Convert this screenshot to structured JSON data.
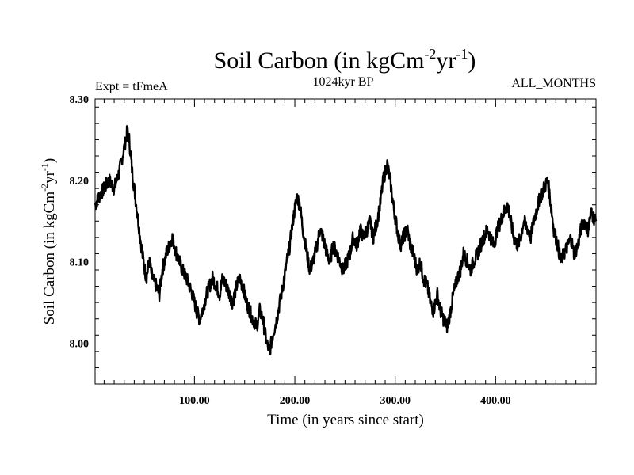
{
  "chart_data": {
    "type": "line",
    "title_main": "Soil Carbon (in kgCm",
    "title_sup1": "-2",
    "title_mid": "yr",
    "title_sup2": "-1",
    "title_end": ")",
    "left_note": "Expt = tFmeA",
    "center_note": "1024kyr BP",
    "right_note": "ALL_MONTHS",
    "xlabel": "Time (in years since start)",
    "ylabel_main": "Soil Carbon (in kgCm",
    "ylabel_sup1": "-2",
    "ylabel_mid": "yr",
    "ylabel_sup2": "-1",
    "ylabel_end": ")",
    "xlim": [
      1,
      500
    ],
    "ylim": [
      7.95,
      8.3
    ],
    "x_ticks": [
      100,
      200,
      300,
      400
    ],
    "x_tick_labels": [
      "100.00",
      "200.00",
      "300.00",
      "400.00"
    ],
    "y_ticks": [
      8.0,
      8.1,
      8.2,
      8.3
    ],
    "y_tick_labels": [
      "8.00",
      "8.10",
      "8.20",
      "8.30"
    ],
    "line_color": "#000000",
    "series": [
      {
        "x": [
          1,
          5,
          10,
          15,
          20,
          25,
          30,
          33,
          35,
          38,
          42,
          45,
          48,
          52,
          55,
          58,
          62,
          65,
          68,
          72,
          75,
          78,
          82,
          85,
          88,
          92,
          95,
          98,
          102,
          105,
          108,
          112,
          115,
          118,
          122,
          125,
          128,
          132,
          135,
          138,
          142,
          145,
          148,
          152,
          155,
          158,
          162,
          165,
          168,
          172,
          175,
          178,
          182,
          185,
          188,
          192,
          195,
          198,
          202,
          205,
          208,
          212,
          215,
          218,
          222,
          225,
          228,
          232,
          235,
          238,
          242,
          245,
          248,
          252,
          255,
          258,
          262,
          265,
          268,
          272,
          275,
          278,
          282,
          285,
          288,
          292,
          295,
          298,
          302,
          305,
          308,
          312,
          315,
          318,
          322,
          325,
          328,
          332,
          335,
          338,
          342,
          345,
          348,
          352,
          355,
          358,
          362,
          365,
          368,
          372,
          375,
          378,
          382,
          385,
          388,
          392,
          395,
          398,
          402,
          405,
          408,
          412,
          415,
          418,
          422,
          425,
          428,
          432,
          435,
          438,
          442,
          445,
          448,
          452,
          455,
          458,
          462,
          465,
          468,
          472,
          475,
          478,
          482,
          485,
          488,
          492,
          495,
          500
        ],
        "y": [
          8.17,
          8.18,
          8.19,
          8.2,
          8.19,
          8.21,
          8.24,
          8.26,
          8.25,
          8.21,
          8.17,
          8.14,
          8.11,
          8.08,
          8.1,
          8.08,
          8.07,
          8.06,
          8.09,
          8.11,
          8.12,
          8.13,
          8.11,
          8.1,
          8.09,
          8.08,
          8.07,
          8.06,
          8.04,
          8.03,
          8.04,
          8.06,
          8.07,
          8.08,
          8.07,
          8.06,
          8.08,
          8.07,
          8.06,
          8.05,
          8.07,
          8.08,
          8.07,
          8.05,
          8.04,
          8.03,
          8.02,
          8.04,
          8.03,
          8.0,
          7.99,
          8.01,
          8.03,
          8.05,
          8.07,
          8.1,
          8.12,
          8.15,
          8.18,
          8.17,
          8.14,
          8.11,
          8.09,
          8.1,
          8.12,
          8.14,
          8.13,
          8.11,
          8.1,
          8.12,
          8.11,
          8.1,
          8.09,
          8.1,
          8.11,
          8.13,
          8.12,
          8.14,
          8.13,
          8.14,
          8.15,
          8.13,
          8.15,
          8.17,
          8.2,
          8.22,
          8.2,
          8.17,
          8.14,
          8.12,
          8.13,
          8.14,
          8.12,
          8.11,
          8.09,
          8.1,
          8.08,
          8.07,
          8.05,
          8.04,
          8.06,
          8.04,
          8.03,
          8.02,
          8.04,
          8.06,
          8.08,
          8.09,
          8.11,
          8.1,
          8.09,
          8.1,
          8.11,
          8.12,
          8.13,
          8.14,
          8.13,
          8.12,
          8.14,
          8.15,
          8.16,
          8.17,
          8.15,
          8.13,
          8.12,
          8.13,
          8.15,
          8.14,
          8.13,
          8.15,
          8.17,
          8.18,
          8.19,
          8.2,
          8.17,
          8.14,
          8.12,
          8.1,
          8.11,
          8.12,
          8.13,
          8.11,
          8.12,
          8.14,
          8.15,
          8.14,
          8.16,
          8.15
        ]
      }
    ]
  }
}
